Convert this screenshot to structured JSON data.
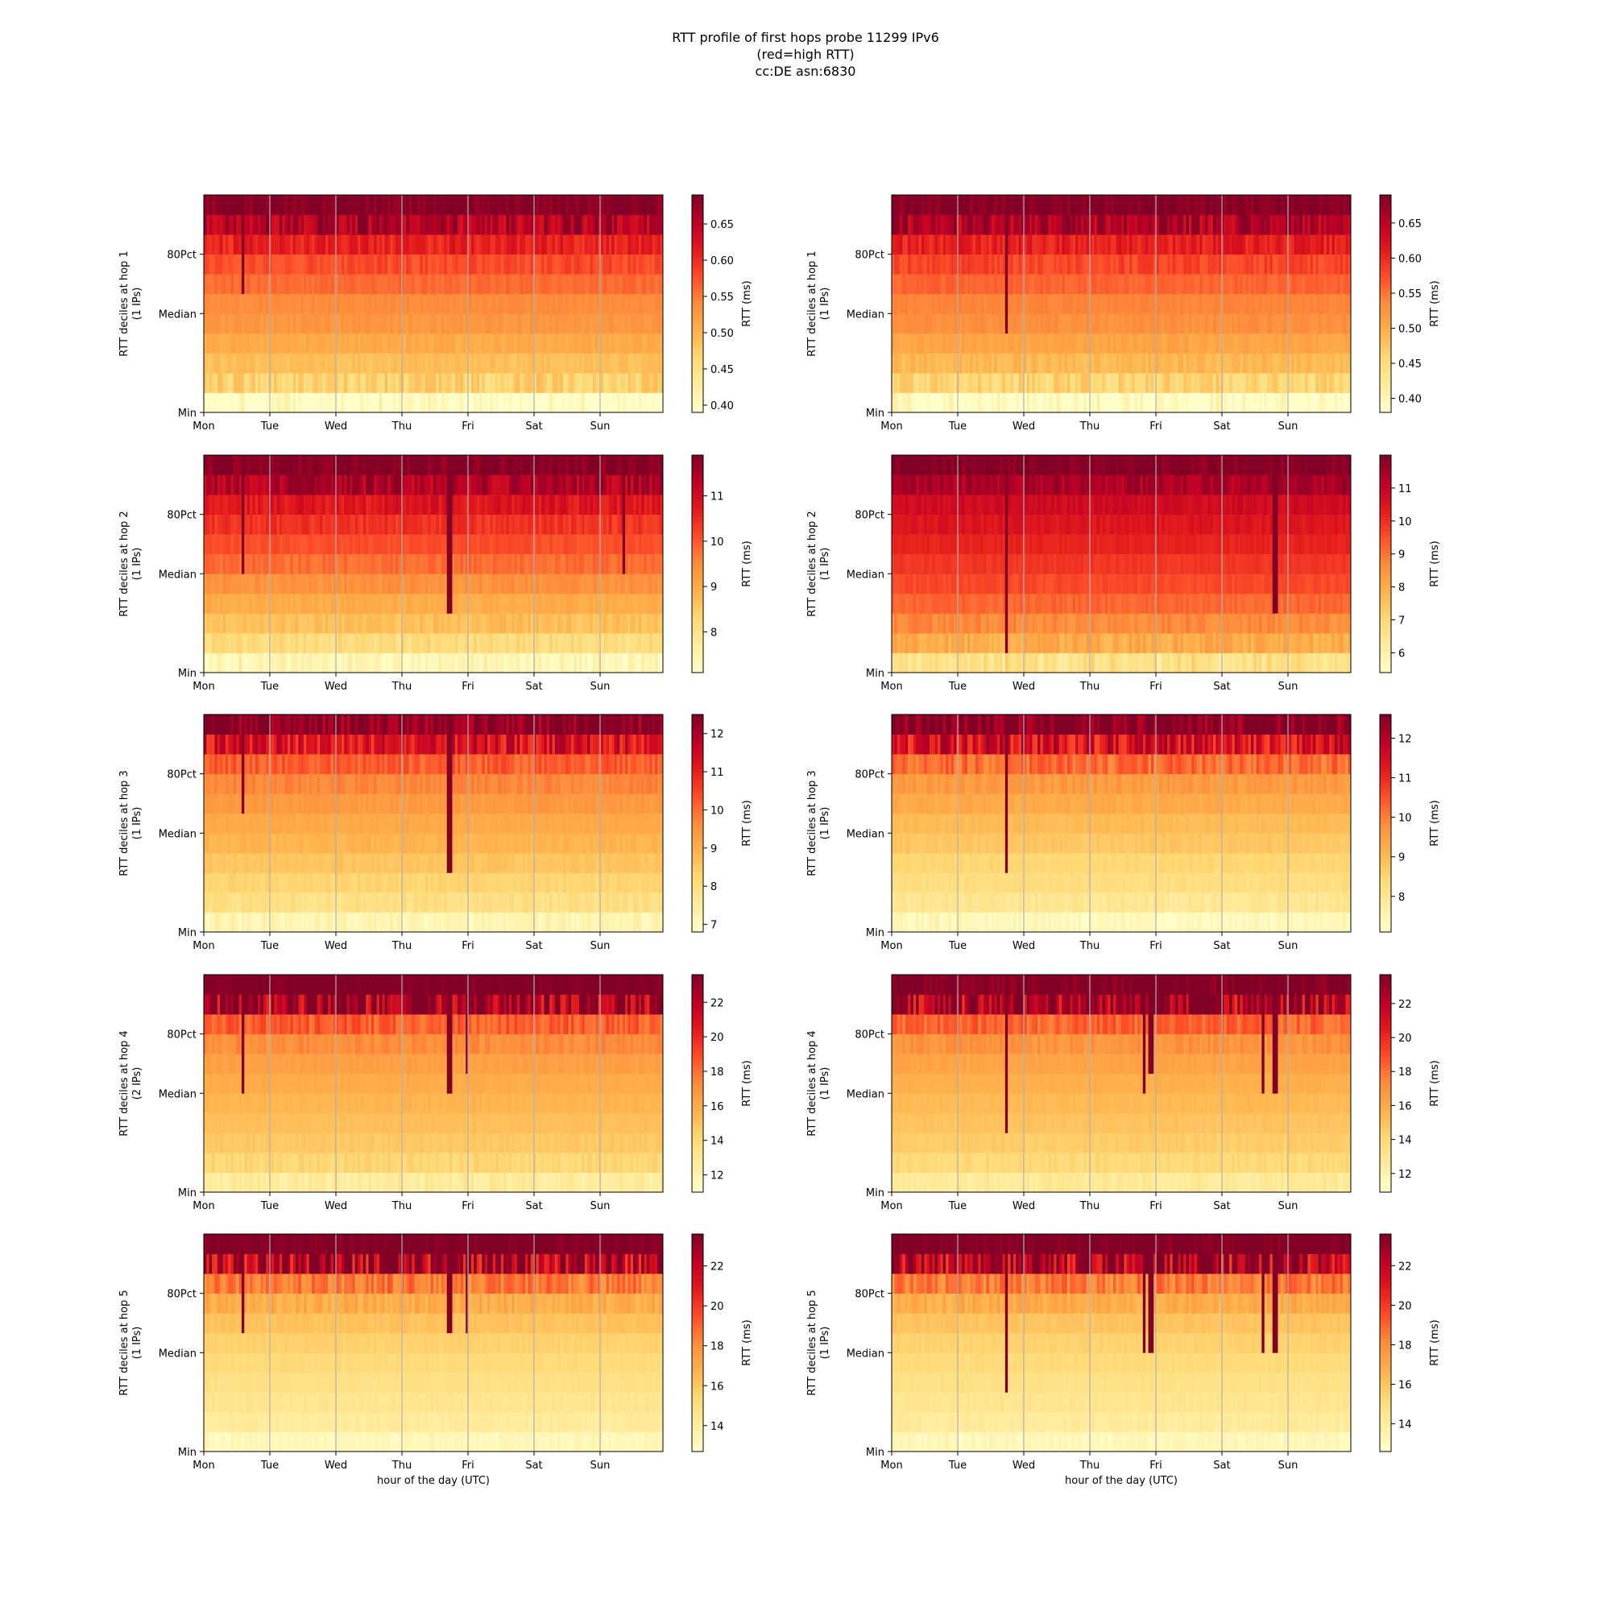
{
  "figure": {
    "title_lines": [
      "RTT profile of first hops probe 11299 IPv6",
      "(red=high RTT)",
      "cc:DE asn:6830"
    ],
    "xlabel": "hour of the day (UTC)",
    "colormap": "YlOrRd",
    "colors": {
      "low": "#ffffcc",
      "mid": "#fd8d3c",
      "high": "#800026"
    },
    "grid": "vertical lines at day boundaries"
  },
  "chart_data": [
    {
      "type": "heatmap",
      "column": "left",
      "hop": 1,
      "ylabel_lines": [
        "RTT deciles at hop 1",
        "(1 IPs)"
      ],
      "yticks": [
        "Min",
        "Median",
        "80Pct"
      ],
      "xticks": [
        "Mon",
        "Tue",
        "Wed",
        "Thu",
        "Fri",
        "Sat",
        "Sun"
      ],
      "colorbar": {
        "label": "RTT (ms)",
        "ticks": [
          "0.40",
          "0.45",
          "0.50",
          "0.55",
          "0.60",
          "0.65"
        ],
        "range": [
          0.39,
          0.69
        ]
      },
      "decile_levels": [
        0.41,
        0.47,
        0.49,
        0.51,
        0.53,
        0.54,
        0.56,
        0.58,
        0.61,
        0.66,
        0.69
      ],
      "spikes": [
        {
          "day": 0.6,
          "dec": 6
        }
      ]
    },
    {
      "type": "heatmap",
      "column": "right",
      "hop": 1,
      "ylabel_lines": [
        "RTT deciles at hop 1",
        "(1 IPs)"
      ],
      "yticks": [
        "Min",
        "Median",
        "80Pct"
      ],
      "xticks": [
        "Mon",
        "Tue",
        "Wed",
        "Thu",
        "Fri",
        "Sat",
        "Sun"
      ],
      "colorbar": {
        "label": "RTT (ms)",
        "ticks": [
          "0.40",
          "0.45",
          "0.50",
          "0.55",
          "0.60",
          "0.65"
        ],
        "range": [
          0.38,
          0.69
        ]
      },
      "decile_levels": [
        0.4,
        0.46,
        0.49,
        0.51,
        0.53,
        0.54,
        0.56,
        0.58,
        0.61,
        0.66,
        0.69
      ],
      "spikes": [
        {
          "day": 1.75,
          "dec": 4
        }
      ]
    },
    {
      "type": "heatmap",
      "column": "left",
      "hop": 2,
      "ylabel_lines": [
        "RTT deciles at hop 2",
        "(1 IPs)"
      ],
      "yticks": [
        "Min",
        "Median",
        "80Pct"
      ],
      "xticks": [
        "Mon",
        "Tue",
        "Wed",
        "Thu",
        "Fri",
        "Sat",
        "Sun"
      ],
      "colorbar": {
        "label": "RTT (ms)",
        "ticks": [
          "8",
          "9",
          "10",
          "11"
        ],
        "range": [
          7.1,
          11.9
        ]
      },
      "decile_levels": [
        7.6,
        8.2,
        8.7,
        9.0,
        9.4,
        9.8,
        10.1,
        10.4,
        10.8,
        11.4,
        11.9
      ],
      "spikes": [
        {
          "day": 0.6,
          "dec": 5
        },
        {
          "day": 3.75,
          "dec": 3
        },
        {
          "day": 6.4,
          "dec": 5
        }
      ]
    },
    {
      "type": "heatmap",
      "column": "right",
      "hop": 2,
      "ylabel_lines": [
        "RTT deciles at hop 2",
        "(1 IPs)"
      ],
      "yticks": [
        "Min",
        "Median",
        "80Pct"
      ],
      "xticks": [
        "Mon",
        "Tue",
        "Wed",
        "Thu",
        "Fri",
        "Sat",
        "Sun"
      ],
      "colorbar": {
        "label": "RTT (ms)",
        "ticks": [
          "6",
          "7",
          "8",
          "9",
          "10",
          "11"
        ],
        "range": [
          5.4,
          12.0
        ]
      },
      "decile_levels": [
        7.0,
        8.0,
        8.7,
        9.2,
        9.6,
        9.9,
        10.2,
        10.5,
        10.8,
        11.4,
        12.0
      ],
      "spikes": [
        {
          "day": 1.75,
          "dec": 1
        },
        {
          "day": 5.85,
          "dec": 3
        }
      ]
    },
    {
      "type": "heatmap",
      "column": "left",
      "hop": 3,
      "ylabel_lines": [
        "RTT deciles at hop 3",
        "(1 IPs)"
      ],
      "yticks": [
        "Min",
        "Median",
        "80Pct"
      ],
      "xticks": [
        "Mon",
        "Tue",
        "Wed",
        "Thu",
        "Fri",
        "Sat",
        "Sun"
      ],
      "colorbar": {
        "label": "RTT (ms)",
        "ticks": [
          "7",
          "8",
          "9",
          "10",
          "11",
          "12"
        ],
        "range": [
          6.8,
          12.5
        ]
      },
      "decile_levels": [
        7.4,
        8.0,
        8.3,
        8.6,
        8.9,
        9.1,
        9.4,
        9.7,
        10.2,
        11.3,
        12.5
      ],
      "spikes": [
        {
          "day": 0.6,
          "dec": 6
        },
        {
          "day": 3.75,
          "dec": 3
        }
      ]
    },
    {
      "type": "heatmap",
      "column": "right",
      "hop": 3,
      "ylabel_lines": [
        "RTT deciles at hop 3",
        "(1 IPs)"
      ],
      "yticks": [
        "Min",
        "Median",
        "80Pct"
      ],
      "xticks": [
        "Mon",
        "Tue",
        "Wed",
        "Thu",
        "Fri",
        "Sat",
        "Sun"
      ],
      "colorbar": {
        "label": "RTT (ms)",
        "ticks": [
          "8",
          "9",
          "10",
          "11",
          "12"
        ],
        "range": [
          7.1,
          12.6
        ]
      },
      "decile_levels": [
        7.5,
        8.0,
        8.3,
        8.5,
        8.8,
        9.0,
        9.3,
        9.6,
        10.2,
        11.5,
        12.6
      ],
      "spikes": [
        {
          "day": 1.75,
          "dec": 3
        }
      ]
    },
    {
      "type": "heatmap",
      "column": "left",
      "hop": 4,
      "ylabel_lines": [
        "RTT deciles at hop 4",
        "(2 IPs)"
      ],
      "yticks": [
        "Min",
        "Median",
        "80Pct"
      ],
      "xticks": [
        "Mon",
        "Tue",
        "Wed",
        "Thu",
        "Fri",
        "Sat",
        "Sun"
      ],
      "colorbar": {
        "label": "RTT (ms)",
        "ticks": [
          "12",
          "14",
          "16",
          "18",
          "20",
          "22"
        ],
        "range": [
          11.0,
          23.6
        ]
      },
      "decile_levels": [
        13.0,
        14.2,
        14.8,
        15.2,
        15.6,
        16.0,
        16.5,
        17.2,
        18.5,
        23.0,
        23.6
      ],
      "spikes": [
        {
          "day": 0.6,
          "dec": 5
        },
        {
          "day": 3.75,
          "dec": 5
        },
        {
          "day": 4.0,
          "dec": 6
        }
      ]
    },
    {
      "type": "heatmap",
      "column": "right",
      "hop": 4,
      "ylabel_lines": [
        "RTT deciles at hop 4",
        "(1 IPs)"
      ],
      "yticks": [
        "Min",
        "Median",
        "80Pct"
      ],
      "xticks": [
        "Mon",
        "Tue",
        "Wed",
        "Thu",
        "Fri",
        "Sat",
        "Sun"
      ],
      "colorbar": {
        "label": "RTT (ms)",
        "ticks": [
          "12",
          "14",
          "16",
          "18",
          "20",
          "22"
        ],
        "range": [
          10.9,
          23.7
        ]
      },
      "decile_levels": [
        13.0,
        14.0,
        14.6,
        15.0,
        15.4,
        15.8,
        16.3,
        17.0,
        18.3,
        22.5,
        23.7
      ],
      "spikes": [
        {
          "day": 1.75,
          "dec": 3
        },
        {
          "day": 3.85,
          "dec": 5
        },
        {
          "day": 3.95,
          "dec": 6
        },
        {
          "day": 5.65,
          "dec": 5
        },
        {
          "day": 5.85,
          "dec": 5
        }
      ]
    },
    {
      "type": "heatmap",
      "column": "left",
      "hop": 5,
      "ylabel_lines": [
        "RTT deciles at hop 5",
        "(1 IPs)"
      ],
      "yticks": [
        "Min",
        "Median",
        "80Pct"
      ],
      "xticks": [
        "Mon",
        "Tue",
        "Wed",
        "Thu",
        "Fri",
        "Sat",
        "Sun"
      ],
      "colorbar": {
        "label": "RTT (ms)",
        "ticks": [
          "14",
          "16",
          "18",
          "20",
          "22"
        ],
        "range": [
          12.7,
          23.6
        ]
      },
      "decile_levels": [
        13.5,
        14.2,
        14.6,
        14.9,
        15.3,
        15.7,
        16.2,
        17.0,
        18.5,
        23.0,
        23.6
      ],
      "spikes": [
        {
          "day": 0.6,
          "dec": 6
        },
        {
          "day": 3.75,
          "dec": 6
        },
        {
          "day": 4.0,
          "dec": 6
        }
      ]
    },
    {
      "type": "heatmap",
      "column": "right",
      "hop": 5,
      "ylabel_lines": [
        "RTT deciles at hop 5",
        "(1 IPs)"
      ],
      "yticks": [
        "Min",
        "Median",
        "80Pct"
      ],
      "xticks": [
        "Mon",
        "Tue",
        "Wed",
        "Thu",
        "Fri",
        "Sat",
        "Sun"
      ],
      "colorbar": {
        "label": "RTT (ms)",
        "ticks": [
          "14",
          "16",
          "18",
          "20",
          "22"
        ],
        "range": [
          12.6,
          23.6
        ]
      },
      "decile_levels": [
        13.4,
        14.1,
        14.5,
        14.8,
        15.2,
        15.6,
        16.1,
        16.9,
        18.4,
        22.8,
        23.6
      ],
      "spikes": [
        {
          "day": 1.75,
          "dec": 3
        },
        {
          "day": 3.85,
          "dec": 5
        },
        {
          "day": 3.95,
          "dec": 5
        },
        {
          "day": 5.65,
          "dec": 5
        },
        {
          "day": 5.85,
          "dec": 5
        }
      ]
    }
  ]
}
